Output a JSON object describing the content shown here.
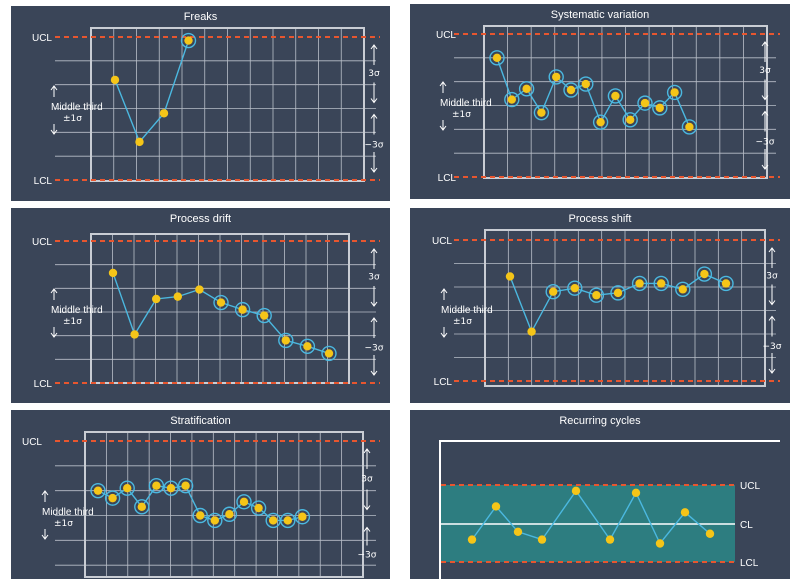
{
  "colors": {
    "panel_bg": "#3a4558",
    "grid": "#b9bfc9",
    "frame": "#c9cdd4",
    "limit_line": "#e8562f",
    "series_line": "#4bb8e0",
    "point": "#f5c518",
    "point_ring": "#4bb8e0",
    "band": "#2d7d80",
    "text": "#ffffff"
  },
  "labels": {
    "ucl": "UCL",
    "lcl": "LCL",
    "cl": "CL",
    "middle_third": "Middle third",
    "pm_sigma": "±1σ",
    "plus3": "3σ",
    "minus3": "−3σ"
  },
  "chart_data": [
    {
      "type": "line",
      "title": "Freaks",
      "ylim": [
        -3,
        3
      ],
      "series": [
        {
          "values": [
            1.2,
            -1.4,
            -0.2,
            2.85
          ],
          "highlighted": [
            false,
            false,
            false,
            true
          ]
        }
      ],
      "grid_columns": 12,
      "grid_rows": 6
    },
    {
      "type": "line",
      "title": "Systematic variation",
      "ylim": [
        -3,
        3
      ],
      "series": [
        {
          "values": [
            2.0,
            0.25,
            0.7,
            -0.3,
            1.2,
            0.65,
            0.9,
            -0.7,
            0.4,
            -0.6,
            0.1,
            -0.1,
            0.55,
            -0.9
          ],
          "highlighted": [
            true,
            true,
            true,
            true,
            true,
            true,
            true,
            true,
            true,
            true,
            true,
            true,
            true,
            true
          ]
        }
      ],
      "grid_columns": 12,
      "grid_rows": 6
    },
    {
      "type": "line",
      "title": "Process drift",
      "ylim": [
        -3,
        3
      ],
      "series": [
        {
          "values": [
            1.65,
            -0.95,
            0.55,
            0.65,
            0.95,
            0.4,
            0.1,
            -0.15,
            -1.2,
            -1.45,
            -1.75
          ],
          "highlighted": [
            false,
            false,
            false,
            false,
            false,
            true,
            true,
            true,
            true,
            true,
            true
          ]
        }
      ],
      "grid_columns": 12,
      "grid_rows": 6
    },
    {
      "type": "line",
      "title": "Process shift",
      "ylim": [
        -3,
        3
      ],
      "series": [
        {
          "values": [
            1.45,
            -0.9,
            0.8,
            0.95,
            0.65,
            0.75,
            1.15,
            1.15,
            0.9,
            1.55,
            1.15
          ],
          "highlighted": [
            false,
            false,
            true,
            true,
            true,
            true,
            true,
            true,
            true,
            true,
            true
          ]
        }
      ],
      "grid_columns": 12,
      "grid_rows": 6
    },
    {
      "type": "line",
      "title": "Stratification",
      "ylim": [
        -3,
        3
      ],
      "series": [
        {
          "values": [
            1.0,
            0.7,
            1.1,
            0.35,
            1.2,
            1.1,
            1.2,
            0.0,
            -0.2,
            0.05,
            0.55,
            0.3,
            -0.2,
            -0.2,
            -0.05
          ],
          "highlighted": [
            true,
            true,
            true,
            true,
            true,
            true,
            true,
            true,
            true,
            true,
            true,
            true,
            true,
            true,
            true
          ]
        }
      ],
      "grid_columns": 13,
      "grid_rows": 6
    },
    {
      "type": "line",
      "title": "Recurring cycles",
      "ylim": [
        -1,
        1
      ],
      "series": [
        {
          "values": [
            -0.4,
            0.45,
            -0.2,
            -0.4,
            0.85,
            -0.4,
            0.8,
            -0.5,
            0.3,
            -0.25
          ]
        }
      ]
    }
  ]
}
